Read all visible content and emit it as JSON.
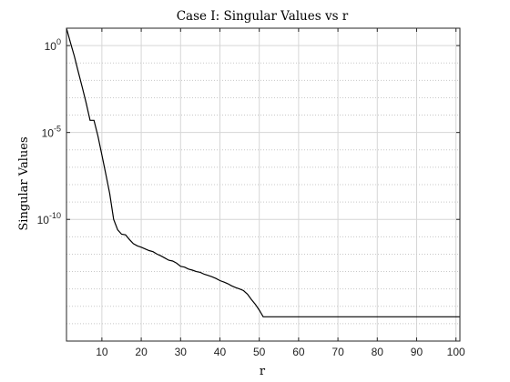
{
  "chart_data": {
    "type": "line",
    "title": "Case I: Singular Values vs r",
    "xlabel": "r",
    "ylabel": "Singular Values",
    "xlim": [
      1,
      101
    ],
    "ylim_log10": [
      -17,
      1
    ],
    "y_scale": "log",
    "grid": true,
    "minor_grid": true,
    "x_ticks": [
      10,
      20,
      30,
      40,
      50,
      60,
      70,
      80,
      90,
      100
    ],
    "y_ticks": [
      {
        "base": "10",
        "exp": "0",
        "log10": 0
      },
      {
        "base": "10",
        "exp": "-5",
        "log10": -5
      },
      {
        "base": "10",
        "exp": "-10",
        "log10": -10
      }
    ],
    "series": [
      {
        "color": "#000000",
        "x": [
          1,
          2,
          3,
          4,
          5,
          6,
          7,
          8,
          9,
          10,
          11,
          12,
          13,
          14,
          15,
          16,
          17,
          18,
          19,
          20,
          21,
          22,
          23,
          24,
          25,
          26,
          27,
          28,
          29,
          30,
          31,
          32,
          33,
          34,
          35,
          36,
          37,
          38,
          39,
          40,
          41,
          42,
          43,
          44,
          45,
          46,
          47,
          48,
          49,
          50,
          51,
          52,
          55,
          60,
          70,
          80,
          90,
          101
        ],
        "y": [
          10,
          1.5,
          0.25,
          0.03,
          0.004,
          0.0005,
          5e-05,
          5e-05,
          6e-06,
          5e-07,
          4e-08,
          3e-09,
          1e-10,
          2.5e-11,
          1.4e-11,
          1.3e-11,
          7e-12,
          4e-12,
          3e-12,
          2.5e-12,
          2e-12,
          1.6e-12,
          1.4e-12,
          1e-12,
          8e-13,
          6e-13,
          4.5e-13,
          4e-13,
          3e-13,
          2e-13,
          1.8e-13,
          1.4e-13,
          1.2e-13,
          1e-13,
          9e-14,
          7e-14,
          6e-14,
          5e-14,
          4e-14,
          3e-14,
          2.5e-14,
          2e-14,
          1.5e-14,
          1.2e-14,
          1e-14,
          8e-15,
          5e-15,
          2.5e-15,
          1.3e-15,
          6e-16,
          2.5e-16,
          2.5e-16,
          2.5e-16,
          2.5e-16,
          2.5e-16,
          2.5e-16,
          2.5e-16,
          2.5e-16
        ]
      }
    ]
  }
}
